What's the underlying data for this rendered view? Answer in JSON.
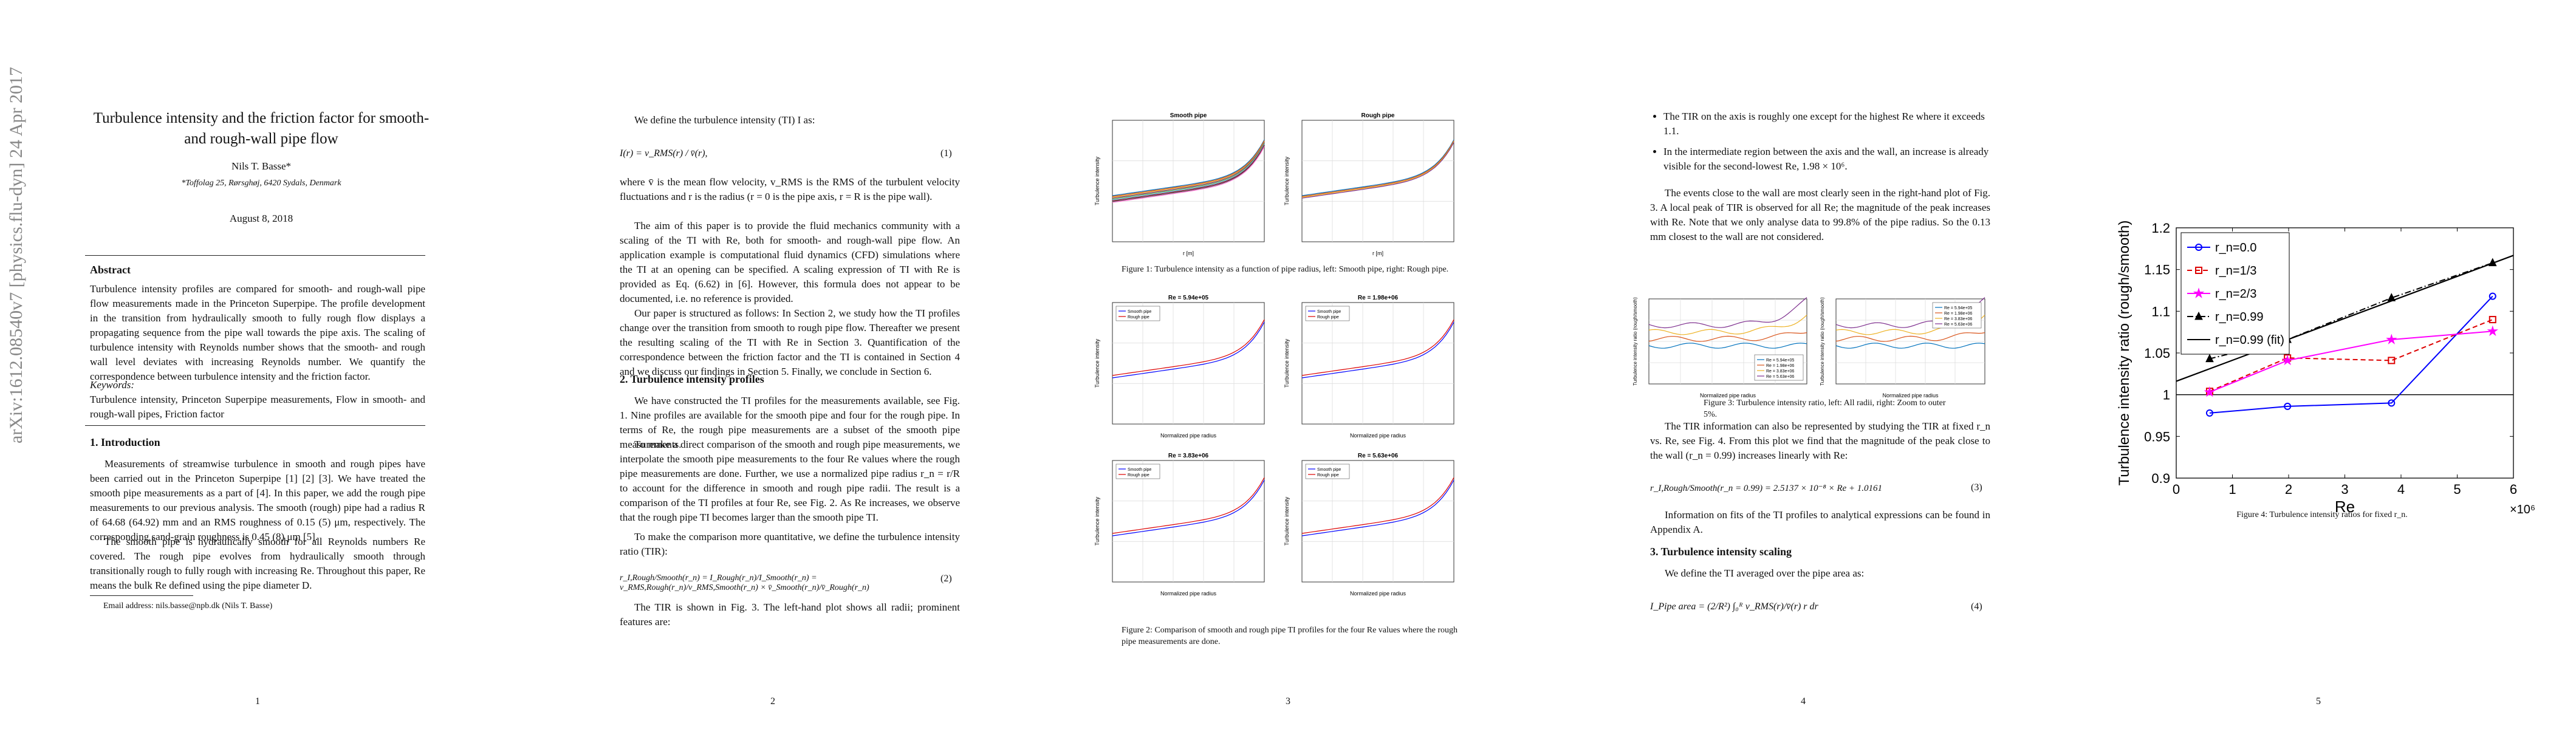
{
  "arxiv_id": "arXiv:1612.08540v7  [physics.flu-dyn]  24 Apr 2017",
  "p1": {
    "title": "Turbulence intensity and the friction factor for smooth- and rough-wall pipe flow",
    "author": "Nils T. Basse*",
    "affil": "*Toffolag 25, Rørsghøj, 6420 Sydals, Denmark",
    "date": "August 8, 2018",
    "abstract_h": "Abstract",
    "abstract": "Turbulence intensity profiles are compared for smooth- and rough-wall pipe flow measurements made in the Princeton Superpipe. The profile development in the transition from hydraulically smooth to fully rough flow displays a propagating sequence from the pipe wall towards the pipe axis. The scaling of turbulence intensity with Reynolds number shows that the smooth- and rough wall level deviates with increasing Reynolds number. We quantify the correspondence between turbulence intensity and the friction factor.",
    "kw_h": "Keywords:",
    "kw": "Turbulence intensity, Princeton Superpipe measurements, Flow in smooth- and rough-wall pipes, Friction factor",
    "intro_h": "1.  Introduction",
    "intro1": "Measurements of streamwise turbulence in smooth and rough pipes have been carried out in the Princeton Superpipe [1] [2] [3]. We have treated the smooth pipe measurements as a part of [4]. In this paper, we add the rough pipe measurements to our previous analysis. The smooth (rough) pipe had a radius R of 64.68 (64.92) mm and an RMS roughness of 0.15 (5) μm, respectively. The corresponding sand-grain roughness is 0.45 (8) μm [5].",
    "intro2": "The smooth pipe is hydraulically smooth for all Reynolds numbers Re covered. The rough pipe evolves from hydraulically smooth through transitionally rough to fully rough with increasing Re. Throughout this paper, Re means the bulk Re defined using the pipe diameter D.",
    "email": "Email address: nils.basse@npb.dk (Nils T. Basse)",
    "num": "1"
  },
  "p2": {
    "l1": "We define the turbulence intensity (TI) I as:",
    "eq1": "I(r) = v_RMS(r) / v̄(r),",
    "n1": "(1)",
    "t1": "where v̄ is the mean flow velocity, v_RMS is the RMS of the turbulent velocity fluctuations and r is the radius (r = 0 is the pipe axis, r = R is the pipe wall).",
    "t2": "The aim of this paper is to provide the fluid mechanics community with a scaling of the TI with Re, both for smooth- and rough-wall pipe flow. An application example is computational fluid dynamics (CFD) simulations where the TI at an opening can be specified. A scaling expression of TI with Re is provided as Eq. (6.62) in [6]. However, this formula does not appear to be documented, i.e. no reference is provided.",
    "t3": "Our paper is structured as follows: In Section 2, we study how the TI profiles change over the transition from smooth to rough pipe flow. Thereafter we present the resulting scaling of the TI with Re in Section 3. Quantification of the correspondence between the friction factor and the TI is contained in Section 4 and we discuss our findings in Section 5. Finally, we conclude in Section 6.",
    "sec2": "2.  Turbulence intensity profiles",
    "t4": "We have constructed the TI profiles for the measurements available, see Fig. 1. Nine profiles are available for the smooth pipe and four for the rough pipe. In terms of Re, the rough pipe measurements are a subset of the smooth pipe measurements.",
    "t5": "To make a direct comparison of the smooth and rough pipe measurements, we interpolate the smooth pipe measurements to the four Re values where the rough pipe measurements are done. Further, we use a normalized pipe radius r_n = r/R to account for the difference in smooth and rough pipe radii. The result is a comparison of the TI profiles at four Re, see Fig. 2. As Re increases, we observe that the rough pipe TI becomes larger than the smooth pipe TI.",
    "t6": "To make the comparison more quantitative, we define the turbulence intensity ratio (TIR):",
    "eq2": "r_I,Rough/Smooth(r_n) = I_Rough(r_n)/I_Smooth(r_n) = v_RMS,Rough(r_n)/v_RMS,Smooth(r_n) × v̄_Smooth(r_n)/v̄_Rough(r_n)",
    "n2": "(2)",
    "t7": "The TIR is shown in Fig. 3. The left-hand plot shows all radii; prominent features are:",
    "num": "2"
  },
  "p3": {
    "cap1": "Figure 1: Turbulence intensity as a function of pipe radius, left: Smooth pipe, right: Rough pipe.",
    "cap2": "Figure 2: Comparison of smooth and rough pipe TI profiles for the four Re values where the rough pipe measurements are done.",
    "num": "3",
    "ylabel": "Turbulence intensity",
    "xr": "r [m]",
    "xn": "Normalized pipe radius",
    "smooth_title": "Smooth pipe",
    "rough_title": "Rough pipe",
    "leg_smooth": "Smooth pipe",
    "leg_rough": "Rough pipe",
    "re_titles": [
      "Re = 5.94e+05",
      "Re = 1.98e+06",
      "Re = 3.83e+06",
      "Re = 5.63e+06"
    ]
  },
  "p4": {
    "b1": "The TIR on the axis is roughly one except for the highest Re where it exceeds 1.1.",
    "b2": "In the intermediate region between the axis and the wall, an increase is already visible for the second-lowest Re, 1.98 × 10⁶.",
    "t1": "The events close to the wall are most clearly seen in the right-hand plot of Fig. 3. A local peak of TIR is observed for all Re; the magnitude of the peak increases with Re. Note that we only analyse data to 99.8% of the pipe radius. So the 0.13 mm closest to the wall are not considered.",
    "cap3": "Figure 3: Turbulence intensity ratio, left: All radii, right: Zoom to outer 5%.",
    "t2": "The TIR information can also be represented by studying the TIR at fixed r_n vs. Re, see Fig. 4. From this plot we find that the magnitude of the peak close to the wall (r_n = 0.99) increases linearly with Re:",
    "eq3": "r_I,Rough/Smooth(r_n = 0.99) = 2.5137 × 10⁻⁸ × Re + 1.0161",
    "n3": "(3)",
    "t3": "Information on fits of the TI profiles to analytical expressions can be found in Appendix A.",
    "sec3": "3.  Turbulence intensity scaling",
    "t4": "We define the TI averaged over the pipe area as:",
    "eq4": "I_Pipe area = (2/R²) ∫₀ᴿ v_RMS(r)/v̄(r) r dr",
    "n4": "(4)",
    "ylabel": "Turbulence intensity ratio (rough/smooth)",
    "xn": "Normalized pipe radius",
    "legend": [
      "Re = 5.94e+05",
      "Re = 1.98e+06",
      "Re = 3.83e+06",
      "Re = 5.63e+06"
    ],
    "num": "4"
  },
  "p5": {
    "cap4": "Figure 4: Turbulence intensity ratios for fixed r_n.",
    "num": "5"
  },
  "chart_data": {
    "type": "line",
    "xlabel": "Re",
    "xscale_label": "×10⁶",
    "ylabel": "Turbulence intensity ratio (rough/smooth)",
    "xlim": [
      0,
      6
    ],
    "ylim": [
      0.9,
      1.2
    ],
    "xticks": [
      "0",
      "1",
      "2",
      "3",
      "4",
      "5",
      "6"
    ],
    "yticks": [
      "0.9",
      "0.95",
      "1",
      "1.05",
      "1.1",
      "1.15",
      "1.2"
    ],
    "x": [
      0.594,
      1.98,
      3.83,
      5.63
    ],
    "series": [
      {
        "name": "r_n=0.0",
        "color": "#0000ff",
        "marker": "circle",
        "style": "solid",
        "values": [
          0.978,
          0.986,
          0.99,
          1.118
        ]
      },
      {
        "name": "r_n=1/3",
        "color": "#dd0000",
        "marker": "square",
        "style": "dashed",
        "values": [
          1.004,
          1.044,
          1.041,
          1.09
        ]
      },
      {
        "name": "r_n=2/3",
        "color": "#ff00ff",
        "marker": "star",
        "style": "solid",
        "values": [
          1.003,
          1.041,
          1.066,
          1.076
        ]
      },
      {
        "name": "r_n=0.99",
        "color": "#000000",
        "marker": "triangle",
        "style": "dash-dot",
        "values": [
          1.043,
          1.066,
          1.116,
          1.158
        ]
      },
      {
        "name": "r_n=0.99 (fit)",
        "color": "#000000",
        "marker": "none",
        "style": "solid",
        "fit": {
          "slope_per_1e6": 0.025137,
          "intercept": 1.0161
        }
      }
    ],
    "reference_line": 1.0,
    "legend_position": "top-left",
    "grid": false
  }
}
